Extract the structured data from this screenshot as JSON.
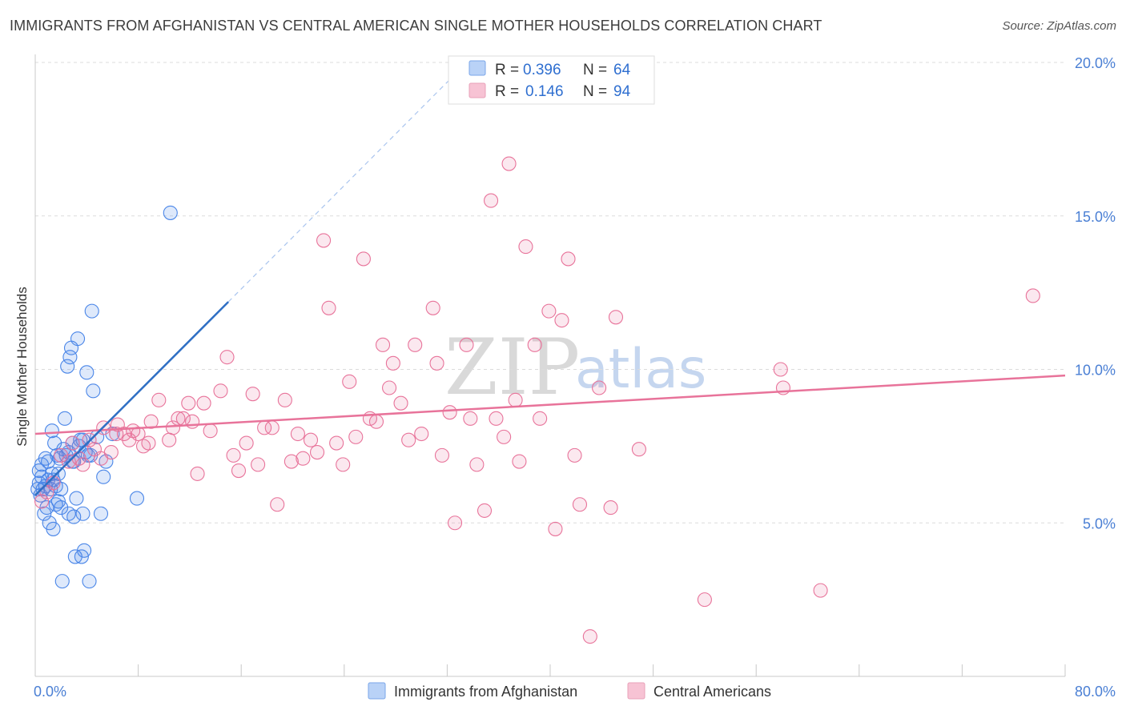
{
  "header": {
    "title": "IMMIGRANTS FROM AFGHANISTAN VS CENTRAL AMERICAN SINGLE MOTHER HOUSEHOLDS CORRELATION CHART",
    "source": "Source: ZipAtlas.com"
  },
  "watermark": {
    "text_zip": "ZIP",
    "text_atlas": "atlas"
  },
  "chart_data": {
    "type": "scatter",
    "title": "IMMIGRANTS FROM AFGHANISTAN VS CENTRAL AMERICAN SINGLE MOTHER HOUSEHOLDS CORRELATION CHART",
    "xlabel": "",
    "ylabel": "Single Mother Households",
    "xlim": [
      0,
      80
    ],
    "ylim": [
      0,
      20
    ],
    "x_tick_labels": [
      "0.0%",
      "80.0%"
    ],
    "y_ticks": [
      5,
      10,
      15,
      20
    ],
    "y_tick_labels": [
      "5.0%",
      "10.0%",
      "15.0%",
      "20.0%"
    ],
    "grid": true,
    "legend_position": "bottom-center",
    "colors": {
      "afghanistan": "#4a86e8",
      "central": "#e8739a"
    },
    "stats": [
      {
        "r_label": "R =",
        "r": "0.396",
        "n_label": "N =",
        "n": "64"
      },
      {
        "r_label": "R =",
        "r": "0.146",
        "n_label": "N =",
        "n": "94"
      }
    ],
    "series": [
      {
        "name": "Immigrants from Afghanistan",
        "trend": {
          "x0": 0.0,
          "y0": 5.9,
          "x1": 15.0,
          "y1": 12.2,
          "dashed_to_x": 34.0,
          "dashed_to_y": 20.2
        },
        "points": [
          [
            0.3,
            6.3
          ],
          [
            0.3,
            6.7
          ],
          [
            0.5,
            6.5
          ],
          [
            0.5,
            6.9
          ],
          [
            0.6,
            6.1
          ],
          [
            0.7,
            5.3
          ],
          [
            0.8,
            6.2
          ],
          [
            0.9,
            5.5
          ],
          [
            1.0,
            6.4
          ],
          [
            1.0,
            7.0
          ],
          [
            1.1,
            5.0
          ],
          [
            1.2,
            6.1
          ],
          [
            1.3,
            8.0
          ],
          [
            1.3,
            6.6
          ],
          [
            1.4,
            4.8
          ],
          [
            1.5,
            7.6
          ],
          [
            1.6,
            5.6
          ],
          [
            1.6,
            6.2
          ],
          [
            1.7,
            7.2
          ],
          [
            1.8,
            5.7
          ],
          [
            1.8,
            6.6
          ],
          [
            1.9,
            7.1
          ],
          [
            2.0,
            6.1
          ],
          [
            2.0,
            5.5
          ],
          [
            2.1,
            3.1
          ],
          [
            2.2,
            7.4
          ],
          [
            2.3,
            8.4
          ],
          [
            2.4,
            7.2
          ],
          [
            2.5,
            10.1
          ],
          [
            2.6,
            5.3
          ],
          [
            2.6,
            7.3
          ],
          [
            2.7,
            10.4
          ],
          [
            2.8,
            10.7
          ],
          [
            2.9,
            7.6
          ],
          [
            3.0,
            5.2
          ],
          [
            3.0,
            7.0
          ],
          [
            3.1,
            3.9
          ],
          [
            3.2,
            5.8
          ],
          [
            3.3,
            11.0
          ],
          [
            3.4,
            7.5
          ],
          [
            3.5,
            7.7
          ],
          [
            3.6,
            3.9
          ],
          [
            3.7,
            5.3
          ],
          [
            3.7,
            7.7
          ],
          [
            3.8,
            4.1
          ],
          [
            3.9,
            7.3
          ],
          [
            4.0,
            9.9
          ],
          [
            4.1,
            7.2
          ],
          [
            4.2,
            3.1
          ],
          [
            4.3,
            7.2
          ],
          [
            4.4,
            11.9
          ],
          [
            4.5,
            9.3
          ],
          [
            4.8,
            7.8
          ],
          [
            5.1,
            5.3
          ],
          [
            5.3,
            6.5
          ],
          [
            5.5,
            7.0
          ],
          [
            6.0,
            7.9
          ],
          [
            7.9,
            5.8
          ],
          [
            10.5,
            15.1
          ],
          [
            0.4,
            5.9
          ],
          [
            0.8,
            7.1
          ],
          [
            1.4,
            6.4
          ],
          [
            2.9,
            7.0
          ],
          [
            0.2,
            6.1
          ]
        ]
      },
      {
        "name": "Central Americans",
        "trend": {
          "x0": 0.0,
          "y0": 7.9,
          "x1": 80.0,
          "y1": 9.8
        },
        "points": [
          [
            0.5,
            5.7
          ],
          [
            0.9,
            6.0
          ],
          [
            1.4,
            6.3
          ],
          [
            2.0,
            7.2
          ],
          [
            2.6,
            7.0
          ],
          [
            2.9,
            7.6
          ],
          [
            3.4,
            7.1
          ],
          [
            3.7,
            6.9
          ],
          [
            4.2,
            7.7
          ],
          [
            4.6,
            7.4
          ],
          [
            5.1,
            7.1
          ],
          [
            5.3,
            8.1
          ],
          [
            5.9,
            7.3
          ],
          [
            6.3,
            7.9
          ],
          [
            6.4,
            8.2
          ],
          [
            6.9,
            7.9
          ],
          [
            7.3,
            7.7
          ],
          [
            7.6,
            8.0
          ],
          [
            8.0,
            7.9
          ],
          [
            8.4,
            7.5
          ],
          [
            8.8,
            7.6
          ],
          [
            9.0,
            8.3
          ],
          [
            9.6,
            9.0
          ],
          [
            10.4,
            7.7
          ],
          [
            10.7,
            8.1
          ],
          [
            11.1,
            8.4
          ],
          [
            11.5,
            8.4
          ],
          [
            11.9,
            8.9
          ],
          [
            12.2,
            8.3
          ],
          [
            12.6,
            6.6
          ],
          [
            13.1,
            8.9
          ],
          [
            13.6,
            8.0
          ],
          [
            14.4,
            9.3
          ],
          [
            14.9,
            10.4
          ],
          [
            15.4,
            7.2
          ],
          [
            15.8,
            6.7
          ],
          [
            16.4,
            7.6
          ],
          [
            16.9,
            9.2
          ],
          [
            17.3,
            6.9
          ],
          [
            17.8,
            8.1
          ],
          [
            18.4,
            8.1
          ],
          [
            18.8,
            5.6
          ],
          [
            19.4,
            9.0
          ],
          [
            19.9,
            7.0
          ],
          [
            20.4,
            7.9
          ],
          [
            20.8,
            7.1
          ],
          [
            21.4,
            7.7
          ],
          [
            21.9,
            7.3
          ],
          [
            22.4,
            14.2
          ],
          [
            22.8,
            12.0
          ],
          [
            23.4,
            7.6
          ],
          [
            23.9,
            6.9
          ],
          [
            24.4,
            9.6
          ],
          [
            24.9,
            7.8
          ],
          [
            25.5,
            13.6
          ],
          [
            26.0,
            8.4
          ],
          [
            26.5,
            8.3
          ],
          [
            27.0,
            10.8
          ],
          [
            27.5,
            9.4
          ],
          [
            27.8,
            10.2
          ],
          [
            28.4,
            8.9
          ],
          [
            29.0,
            7.7
          ],
          [
            29.5,
            10.8
          ],
          [
            30.0,
            7.9
          ],
          [
            30.9,
            12.0
          ],
          [
            31.2,
            10.2
          ],
          [
            31.6,
            7.2
          ],
          [
            32.2,
            8.6
          ],
          [
            32.6,
            5.0
          ],
          [
            33.5,
            10.8
          ],
          [
            33.8,
            8.4
          ],
          [
            34.3,
            6.9
          ],
          [
            34.9,
            5.4
          ],
          [
            35.4,
            15.5
          ],
          [
            35.8,
            8.4
          ],
          [
            36.4,
            7.8
          ],
          [
            36.8,
            16.7
          ],
          [
            37.3,
            9.0
          ],
          [
            37.6,
            7.0
          ],
          [
            38.1,
            14.0
          ],
          [
            38.8,
            10.8
          ],
          [
            39.2,
            8.4
          ],
          [
            39.9,
            11.9
          ],
          [
            40.4,
            4.8
          ],
          [
            40.9,
            11.6
          ],
          [
            41.4,
            13.6
          ],
          [
            41.9,
            7.2
          ],
          [
            42.3,
            5.6
          ],
          [
            43.1,
            1.3
          ],
          [
            43.8,
            9.4
          ],
          [
            44.7,
            5.5
          ],
          [
            45.1,
            11.7
          ],
          [
            46.9,
            7.4
          ],
          [
            52.0,
            2.5
          ]
        ],
        "extra_points": [
          [
            57.9,
            10.0
          ],
          [
            58.1,
            9.4
          ],
          [
            61.0,
            2.8
          ],
          [
            77.5,
            12.4
          ]
        ]
      }
    ]
  }
}
